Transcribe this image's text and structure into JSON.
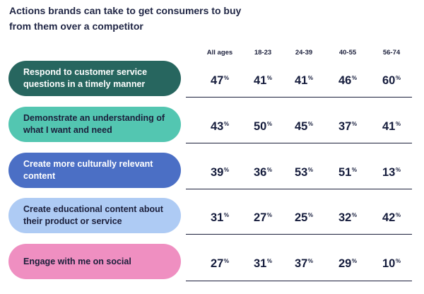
{
  "title_lines": [
    "Actions brands can take to get consumers to buy",
    "from them over a competitor"
  ],
  "chart_data": {
    "type": "table",
    "title": "Actions brands can take to get consumers to buy from them over a competitor",
    "columns": [
      "All ages",
      "18-23",
      "24-39",
      "40-55",
      "56-74"
    ],
    "unit": "%",
    "rows": [
      {
        "label": "Respond to customer service questions in a timely manner",
        "color": "#27665f",
        "text_color": "#ffffff",
        "values": [
          47,
          41,
          41,
          46,
          60
        ]
      },
      {
        "label": "Demonstrate an understanding of what I want and need",
        "color": "#53c6b1",
        "text_color": "#1b1f3b",
        "values": [
          43,
          50,
          45,
          37,
          41
        ]
      },
      {
        "label": "Create more culturally relevant content",
        "color": "#4b6fc5",
        "text_color": "#ffffff",
        "values": [
          39,
          36,
          53,
          51,
          13
        ]
      },
      {
        "label": "Create educational content about their product or service",
        "color": "#aecbf4",
        "text_color": "#1b1f3b",
        "values": [
          31,
          27,
          25,
          32,
          42
        ]
      },
      {
        "label": "Engage with me on social",
        "color": "#ef8fc1",
        "text_color": "#1b1f3b",
        "values": [
          27,
          31,
          37,
          29,
          10
        ]
      }
    ]
  }
}
